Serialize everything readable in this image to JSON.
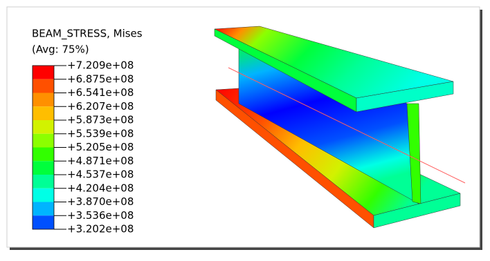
{
  "legend": {
    "title": "BEAM_STRESS, Mises",
    "subtitle": "(Avg: 75%)",
    "labels": [
      "+7.209e+08",
      "+6.875e+08",
      "+6.541e+08",
      "+6.207e+08",
      "+5.873e+08",
      "+5.539e+08",
      "+5.205e+08",
      "+4.871e+08",
      "+4.537e+08",
      "+4.204e+08",
      "+3.870e+08",
      "+3.536e+08",
      "+3.202e+08"
    ],
    "colors": [
      "#ff0000",
      "#ff5000",
      "#ff9000",
      "#ffbe00",
      "#d2f200",
      "#8cff00",
      "#32ff00",
      "#00ff3c",
      "#00ff96",
      "#00ffe6",
      "#00b4ff",
      "#0050ff",
      "#0000ff"
    ]
  }
}
